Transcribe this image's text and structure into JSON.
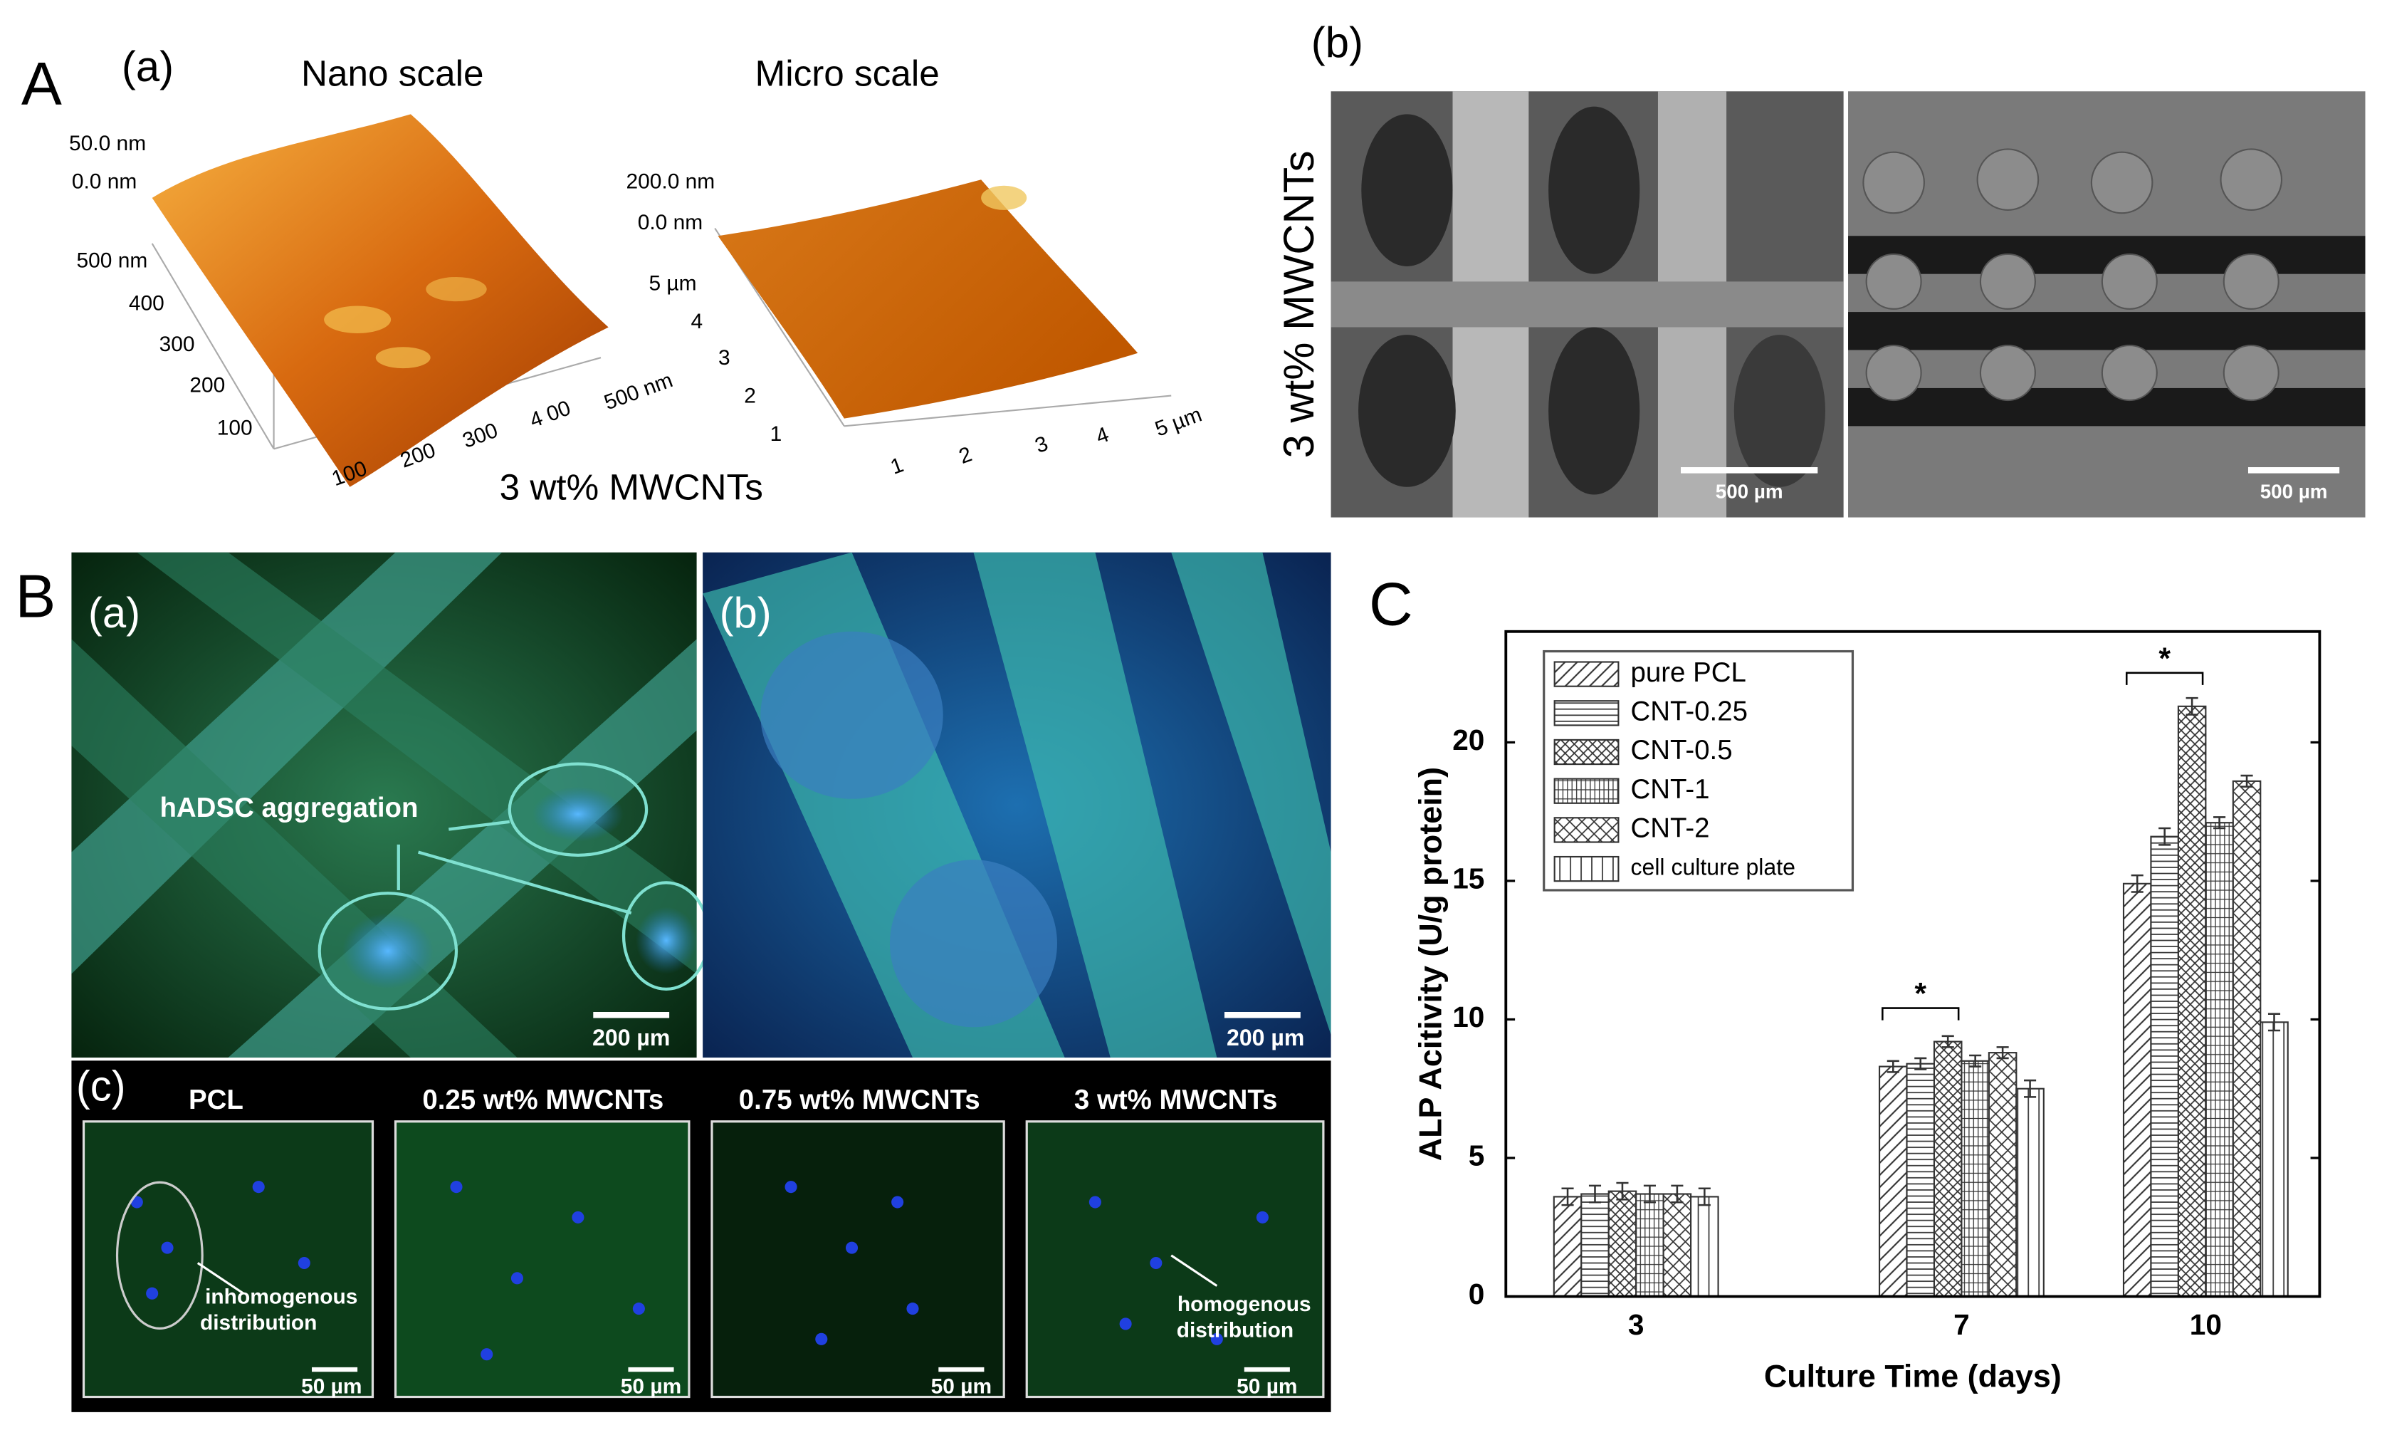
{
  "panel_a": {
    "label": "A",
    "sub_a": "(a)",
    "nano_title": "Nano scale",
    "micro_title": "Micro scale",
    "nano_z": [
      "50.0 nm",
      "0.0 nm"
    ],
    "nano_y": [
      "500 nm",
      "400",
      "300",
      "200",
      "100"
    ],
    "nano_x": [
      "100",
      "200",
      "300",
      "4 00",
      "500 nm"
    ],
    "micro_z": [
      "200.0 nm",
      "0.0 nm"
    ],
    "micro_y": [
      "5 µm",
      "4",
      "3",
      "2",
      "1"
    ],
    "micro_x": [
      "1",
      "2",
      "3",
      "4",
      "5 µm"
    ],
    "caption": "3 wt% MWCNTs",
    "sub_b": "(b)",
    "sem_side_label": "3 wt% MWCNTs",
    "sem_scale": [
      "500 µm",
      "500 µm"
    ]
  },
  "panel_b": {
    "label": "B",
    "sub_a": "(a)",
    "aggregation": "hADSC aggregation",
    "scale_a": "200 µm",
    "sub_b": "(b)",
    "scale_b": "200 µm",
    "sub_c": "(c)",
    "strip_titles": [
      "PCL",
      "0.25 wt% MWCNTs",
      "0.75 wt% MWCNTs",
      "3 wt% MWCNTs"
    ],
    "inhomogenous": [
      "inhomogenous",
      "distribution"
    ],
    "homogenous": [
      "homogenous",
      "distribution"
    ],
    "strip_scales": [
      "50 µm",
      "50 µm",
      "50 µm",
      "50 µm"
    ]
  },
  "panel_c_label": "C",
  "chart_data": {
    "type": "bar",
    "y_label": "ALP Acitivity (U/g protein)",
    "x_label": "Culture Time (days)",
    "x": [
      3,
      7,
      10
    ],
    "xlim": [
      1.4,
      11.4
    ],
    "xticks": [
      3,
      7,
      10
    ],
    "ylim": [
      0,
      24
    ],
    "yticks": [
      0,
      5,
      10,
      15,
      20
    ],
    "legend": "upper left",
    "series": [
      {
        "name": "pure PCL",
        "color": "#333333",
        "pattern": "diagonal",
        "values": [
          3.6,
          8.3,
          14.9
        ],
        "errors": [
          0.3,
          0.2,
          0.3
        ]
      },
      {
        "name": "CNT-0.25",
        "color": "#333333",
        "pattern": "horizontal",
        "values": [
          3.7,
          8.4,
          16.6
        ],
        "errors": [
          0.3,
          0.2,
          0.3
        ]
      },
      {
        "name": "CNT-0.5",
        "color": "#333333",
        "pattern": "crosshatch",
        "values": [
          3.8,
          9.2,
          21.3
        ],
        "errors": [
          0.3,
          0.2,
          0.3
        ]
      },
      {
        "name": "CNT-1",
        "color": "#333333",
        "pattern": "vertical",
        "values": [
          3.7,
          8.5,
          17.1
        ],
        "errors": [
          0.3,
          0.2,
          0.2
        ]
      },
      {
        "name": "CNT-2",
        "color": "#333333",
        "pattern": "checker",
        "values": [
          3.7,
          8.8,
          18.6
        ],
        "errors": [
          0.3,
          0.2,
          0.2
        ]
      },
      {
        "name": "cell culture plate",
        "color": "#333333",
        "pattern": "vertical-wide",
        "values": [
          3.6,
          7.5,
          9.9
        ],
        "errors": [
          0.3,
          0.3,
          0.3
        ]
      }
    ],
    "annotations": [
      {
        "text": "*",
        "x": 7
      },
      {
        "text": "*",
        "x": 10
      }
    ]
  }
}
